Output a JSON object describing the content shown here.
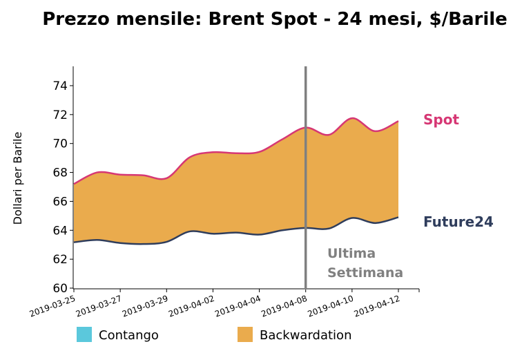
{
  "chart_data": {
    "type": "area",
    "title": "Prezzo mensile: Brent Spot - 24 mesi, $/Barile",
    "ylabel": "Dollari per Barile",
    "xlabel": "",
    "ylim": [
      60,
      75.2
    ],
    "yticks": [
      60,
      62,
      64,
      66,
      68,
      70,
      72,
      74
    ],
    "x": [
      "2019-03-25",
      "2019-03-26",
      "2019-03-27",
      "2019-03-28",
      "2019-03-29",
      "2019-04-01",
      "2019-04-02",
      "2019-04-03",
      "2019-04-04",
      "2019-04-05",
      "2019-04-08",
      "2019-04-09",
      "2019-04-10",
      "2019-04-11",
      "2019-04-12"
    ],
    "xticks": [
      "2019-03-25",
      "2019-03-27",
      "2019-03-29",
      "2019-04-02",
      "2019-04-04",
      "2019-04-08",
      "2019-04-10",
      "2019-04-12"
    ],
    "series": [
      {
        "name": "Spot",
        "color": "#d63774",
        "values": [
          67.2,
          68.0,
          67.85,
          67.8,
          67.6,
          69.05,
          69.4,
          69.33,
          69.42,
          70.3,
          71.1,
          70.6,
          71.75,
          70.85,
          71.55
        ]
      },
      {
        "name": "Future24",
        "color": "#2f3d5c",
        "values": [
          63.17,
          63.33,
          63.12,
          63.05,
          63.2,
          63.92,
          63.76,
          63.84,
          63.7,
          64.0,
          64.16,
          64.12,
          64.85,
          64.5,
          64.9
        ]
      }
    ],
    "marker": {
      "x": "2019-04-08",
      "label_line1": "Ultima",
      "label_line2": "Settimana",
      "color": "#808080"
    },
    "legend": {
      "placement": "bottom",
      "items": [
        {
          "label": "Contango",
          "color": "#5bc8dc"
        },
        {
          "label": "Backwardation",
          "color": "#eaab4d"
        }
      ]
    },
    "fill_color": "#eaab4d",
    "grid": false
  }
}
